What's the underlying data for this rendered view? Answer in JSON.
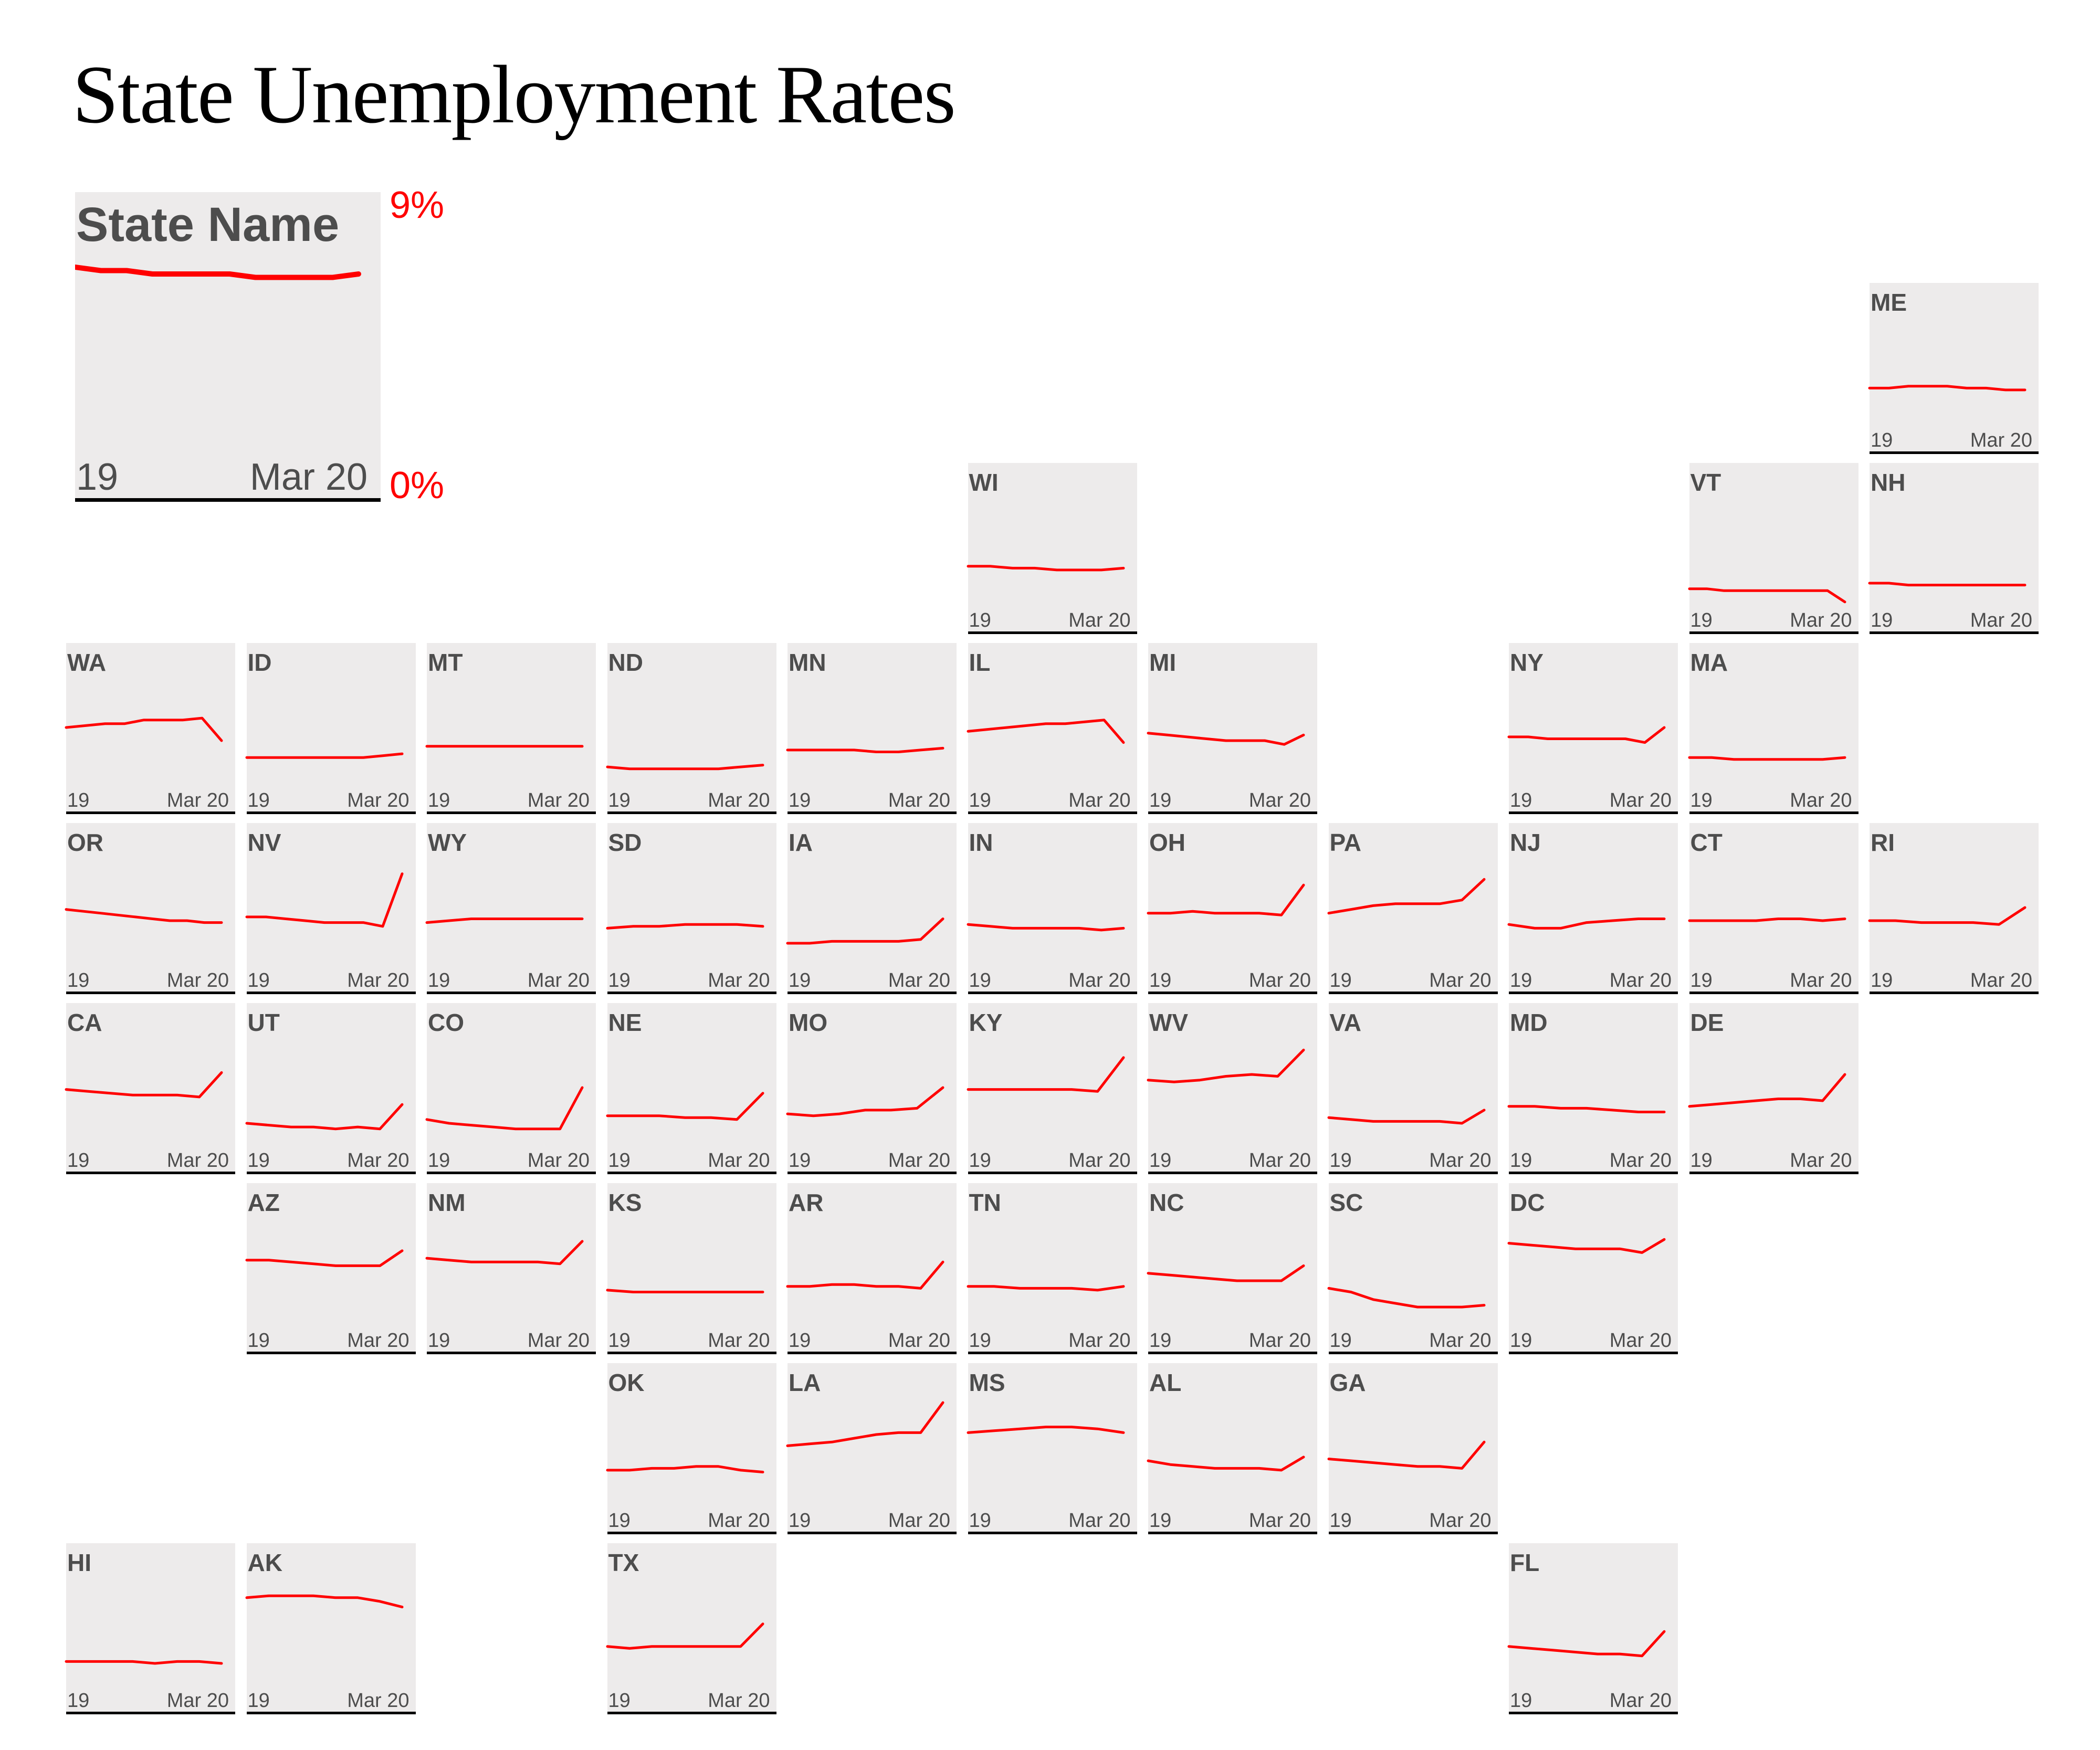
{
  "title": "State Unemployment Rates",
  "colors": {
    "line": "#ff0000",
    "tile_background": "#edebeb",
    "label": "#4d4d4d",
    "axis": "#000000"
  },
  "legend": {
    "state_name": "State Name",
    "x_start": "19",
    "x_end": "Mar 20",
    "y_max_label": "9%",
    "y_min_label": "0%",
    "values": [
      6.8,
      6.7,
      6.7,
      6.6,
      6.6,
      6.6,
      6.6,
      6.5,
      6.5,
      6.5,
      6.5,
      6.6
    ]
  },
  "chart_data": {
    "type": "line",
    "title": "State Unemployment Rates",
    "layout": "tile grid map of US states",
    "x_start": "19",
    "x_end": "Mar 20",
    "ylim": [
      0,
      9
    ],
    "ylabel_max": "9%",
    "ylabel_min": "0%",
    "states": [
      {
        "abbr": "ME",
        "row": 0,
        "col": 10,
        "values": [
          3.4,
          3.4,
          3.5,
          3.5,
          3.5,
          3.4,
          3.4,
          3.3,
          3.3
        ]
      },
      {
        "abbr": "WI",
        "row": 1,
        "col": 5,
        "values": [
          3.5,
          3.5,
          3.4,
          3.4,
          3.3,
          3.3,
          3.3,
          3.4
        ]
      },
      {
        "abbr": "VT",
        "row": 1,
        "col": 9,
        "values": [
          2.3,
          2.3,
          2.2,
          2.2,
          2.2,
          2.2,
          2.2,
          2.2,
          2.2,
          1.6
        ]
      },
      {
        "abbr": "NH",
        "row": 1,
        "col": 10,
        "values": [
          2.6,
          2.6,
          2.5,
          2.5,
          2.5,
          2.5,
          2.5,
          2.5,
          2.5
        ]
      },
      {
        "abbr": "WA",
        "row": 2,
        "col": 0,
        "values": [
          4.5,
          4.6,
          4.7,
          4.7,
          4.9,
          4.9,
          4.9,
          5.0,
          3.8
        ]
      },
      {
        "abbr": "ID",
        "row": 2,
        "col": 1,
        "values": [
          2.9,
          2.9,
          2.9,
          2.9,
          2.9,
          2.9,
          2.9,
          3.0,
          3.1
        ]
      },
      {
        "abbr": "MT",
        "row": 2,
        "col": 2,
        "values": [
          3.5,
          3.5,
          3.5,
          3.5,
          3.5,
          3.5,
          3.5,
          3.5,
          3.5
        ]
      },
      {
        "abbr": "ND",
        "row": 2,
        "col": 3,
        "values": [
          2.4,
          2.3,
          2.3,
          2.3,
          2.3,
          2.3,
          2.4,
          2.5
        ]
      },
      {
        "abbr": "MN",
        "row": 2,
        "col": 4,
        "values": [
          3.3,
          3.3,
          3.3,
          3.3,
          3.2,
          3.2,
          3.3,
          3.4
        ]
      },
      {
        "abbr": "IL",
        "row": 2,
        "col": 5,
        "values": [
          4.3,
          4.4,
          4.5,
          4.6,
          4.7,
          4.7,
          4.8,
          4.9,
          3.7
        ]
      },
      {
        "abbr": "MI",
        "row": 2,
        "col": 6,
        "values": [
          4.2,
          4.1,
          4.0,
          3.9,
          3.8,
          3.8,
          3.8,
          3.6,
          4.1
        ]
      },
      {
        "abbr": "NY",
        "row": 2,
        "col": 8,
        "values": [
          4.0,
          4.0,
          3.9,
          3.9,
          3.9,
          3.9,
          3.9,
          3.7,
          4.5
        ]
      },
      {
        "abbr": "MA",
        "row": 2,
        "col": 9,
        "values": [
          2.9,
          2.9,
          2.8,
          2.8,
          2.8,
          2.8,
          2.8,
          2.9
        ]
      },
      {
        "abbr": "OR",
        "row": 3,
        "col": 0,
        "values": [
          4.4,
          4.3,
          4.2,
          4.1,
          4.0,
          3.9,
          3.8,
          3.8,
          3.7,
          3.7
        ]
      },
      {
        "abbr": "NV",
        "row": 3,
        "col": 1,
        "values": [
          4.0,
          4.0,
          3.9,
          3.8,
          3.7,
          3.7,
          3.7,
          3.5,
          6.3
        ]
      },
      {
        "abbr": "WY",
        "row": 3,
        "col": 2,
        "values": [
          3.7,
          3.8,
          3.9,
          3.9,
          3.9,
          3.9,
          3.9,
          3.9
        ]
      },
      {
        "abbr": "SD",
        "row": 3,
        "col": 3,
        "values": [
          3.4,
          3.5,
          3.5,
          3.6,
          3.6,
          3.6,
          3.5
        ]
      },
      {
        "abbr": "IA",
        "row": 3,
        "col": 4,
        "values": [
          2.6,
          2.6,
          2.7,
          2.7,
          2.7,
          2.7,
          2.8,
          3.9
        ]
      },
      {
        "abbr": "IN",
        "row": 3,
        "col": 5,
        "values": [
          3.6,
          3.5,
          3.4,
          3.4,
          3.4,
          3.4,
          3.3,
          3.4
        ]
      },
      {
        "abbr": "OH",
        "row": 3,
        "col": 6,
        "values": [
          4.2,
          4.2,
          4.3,
          4.2,
          4.2,
          4.2,
          4.1,
          5.7
        ]
      },
      {
        "abbr": "PA",
        "row": 3,
        "col": 7,
        "values": [
          4.2,
          4.4,
          4.6,
          4.7,
          4.7,
          4.7,
          4.9,
          6.0
        ]
      },
      {
        "abbr": "NJ",
        "row": 3,
        "col": 8,
        "values": [
          3.6,
          3.4,
          3.4,
          3.7,
          3.8,
          3.9,
          3.9
        ]
      },
      {
        "abbr": "CT",
        "row": 3,
        "col": 9,
        "values": [
          3.8,
          3.8,
          3.8,
          3.8,
          3.9,
          3.9,
          3.8,
          3.9
        ]
      },
      {
        "abbr": "RI",
        "row": 3,
        "col": 10,
        "values": [
          3.8,
          3.8,
          3.7,
          3.7,
          3.7,
          3.6,
          4.5
        ]
      },
      {
        "abbr": "CA",
        "row": 4,
        "col": 0,
        "values": [
          4.4,
          4.3,
          4.2,
          4.1,
          4.1,
          4.1,
          4.0,
          5.3
        ]
      },
      {
        "abbr": "UT",
        "row": 4,
        "col": 1,
        "values": [
          2.6,
          2.5,
          2.4,
          2.4,
          2.3,
          2.4,
          2.3,
          3.6
        ]
      },
      {
        "abbr": "CO",
        "row": 4,
        "col": 2,
        "values": [
          2.8,
          2.6,
          2.5,
          2.4,
          2.3,
          2.3,
          2.3,
          4.5
        ]
      },
      {
        "abbr": "NE",
        "row": 4,
        "col": 3,
        "values": [
          3.0,
          3.0,
          3.0,
          2.9,
          2.9,
          2.8,
          4.2
        ]
      },
      {
        "abbr": "MO",
        "row": 4,
        "col": 4,
        "values": [
          3.1,
          3.0,
          3.1,
          3.3,
          3.3,
          3.4,
          4.5
        ]
      },
      {
        "abbr": "KY",
        "row": 4,
        "col": 5,
        "values": [
          4.4,
          4.4,
          4.4,
          4.4,
          4.4,
          4.3,
          6.1
        ]
      },
      {
        "abbr": "WV",
        "row": 4,
        "col": 6,
        "values": [
          4.9,
          4.8,
          4.9,
          5.1,
          5.2,
          5.1,
          6.5
        ]
      },
      {
        "abbr": "VA",
        "row": 4,
        "col": 7,
        "values": [
          2.9,
          2.8,
          2.7,
          2.7,
          2.7,
          2.7,
          2.6,
          3.3
        ]
      },
      {
        "abbr": "MD",
        "row": 4,
        "col": 8,
        "values": [
          3.5,
          3.5,
          3.4,
          3.4,
          3.3,
          3.2,
          3.2
        ]
      },
      {
        "abbr": "DE",
        "row": 4,
        "col": 9,
        "values": [
          3.5,
          3.6,
          3.7,
          3.8,
          3.9,
          3.9,
          3.8,
          5.2
        ]
      },
      {
        "abbr": "AZ",
        "row": 5,
        "col": 1,
        "values": [
          4.9,
          4.9,
          4.8,
          4.7,
          4.6,
          4.6,
          4.6,
          5.4
        ]
      },
      {
        "abbr": "NM",
        "row": 5,
        "col": 2,
        "values": [
          5.0,
          4.9,
          4.8,
          4.8,
          4.8,
          4.8,
          4.7,
          5.9
        ]
      },
      {
        "abbr": "KS",
        "row": 5,
        "col": 3,
        "values": [
          3.3,
          3.2,
          3.2,
          3.2,
          3.2,
          3.2,
          3.2
        ]
      },
      {
        "abbr": "AR",
        "row": 5,
        "col": 4,
        "values": [
          3.5,
          3.5,
          3.6,
          3.6,
          3.5,
          3.5,
          3.4,
          4.8
        ]
      },
      {
        "abbr": "TN",
        "row": 5,
        "col": 5,
        "values": [
          3.5,
          3.5,
          3.4,
          3.4,
          3.4,
          3.3,
          3.5
        ]
      },
      {
        "abbr": "NC",
        "row": 5,
        "col": 6,
        "values": [
          4.2,
          4.1,
          4.0,
          3.9,
          3.8,
          3.8,
          3.8,
          4.6
        ]
      },
      {
        "abbr": "SC",
        "row": 5,
        "col": 7,
        "values": [
          3.4,
          3.2,
          2.8,
          2.6,
          2.4,
          2.4,
          2.4,
          2.5
        ]
      },
      {
        "abbr": "DC",
        "row": 5,
        "col": 8,
        "values": [
          5.8,
          5.7,
          5.6,
          5.5,
          5.5,
          5.5,
          5.3,
          6.0
        ]
      },
      {
        "abbr": "OK",
        "row": 6,
        "col": 3,
        "values": [
          3.3,
          3.3,
          3.4,
          3.4,
          3.5,
          3.5,
          3.3,
          3.2
        ]
      },
      {
        "abbr": "LA",
        "row": 6,
        "col": 4,
        "values": [
          4.6,
          4.7,
          4.8,
          5.0,
          5.2,
          5.3,
          5.3,
          6.9
        ]
      },
      {
        "abbr": "MS",
        "row": 6,
        "col": 5,
        "values": [
          5.3,
          5.4,
          5.5,
          5.6,
          5.6,
          5.5,
          5.3
        ]
      },
      {
        "abbr": "AL",
        "row": 6,
        "col": 6,
        "values": [
          3.8,
          3.6,
          3.5,
          3.4,
          3.4,
          3.4,
          3.3,
          4.0
        ]
      },
      {
        "abbr": "GA",
        "row": 6,
        "col": 7,
        "values": [
          3.9,
          3.8,
          3.7,
          3.6,
          3.5,
          3.5,
          3.4,
          4.8
        ]
      },
      {
        "abbr": "HI",
        "row": 7,
        "col": 0,
        "values": [
          2.7,
          2.7,
          2.7,
          2.7,
          2.6,
          2.7,
          2.7,
          2.6
        ]
      },
      {
        "abbr": "AK",
        "row": 7,
        "col": 1,
        "values": [
          6.1,
          6.2,
          6.2,
          6.2,
          6.1,
          6.1,
          5.9,
          5.6
        ]
      },
      {
        "abbr": "TX",
        "row": 7,
        "col": 3,
        "values": [
          3.5,
          3.4,
          3.5,
          3.5,
          3.5,
          3.5,
          3.5,
          4.7
        ]
      },
      {
        "abbr": "FL",
        "row": 7,
        "col": 8,
        "values": [
          3.5,
          3.4,
          3.3,
          3.2,
          3.1,
          3.1,
          3.0,
          4.3
        ]
      }
    ]
  }
}
